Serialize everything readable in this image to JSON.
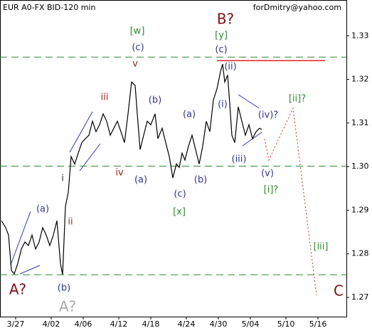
{
  "chart_data": {
    "type": "line",
    "title": "EUR A0-FX BID-120 min",
    "source": "forDmitry@yahoo.com",
    "color": "#000000",
    "x": [
      2,
      8,
      12,
      16,
      20,
      25,
      30,
      35,
      40,
      45,
      50,
      55,
      60,
      65,
      70,
      75,
      80,
      85,
      88,
      92,
      96,
      100,
      105,
      110,
      115,
      120,
      125,
      130,
      135,
      140,
      145,
      150,
      155,
      160,
      165,
      170,
      175,
      180,
      185,
      190,
      193,
      197,
      202,
      207,
      212,
      218,
      222,
      228,
      233,
      238,
      243,
      248,
      252,
      256,
      260,
      265,
      270,
      275,
      280,
      285,
      290,
      295,
      300,
      305,
      310,
      313,
      316,
      320,
      323,
      326,
      330,
      335,
      340,
      345,
      350,
      355,
      360,
      365,
      368
    ],
    "values": [
      1.2876,
      1.286,
      1.2843,
      1.2762,
      1.2754,
      1.2778,
      1.2811,
      1.2827,
      1.2819,
      1.2843,
      1.2811,
      1.2827,
      1.286,
      1.2843,
      1.2819,
      1.2843,
      1.2876,
      1.2778,
      1.2752,
      1.2909,
      1.2941,
      1.3023,
      1.3006,
      1.3031,
      1.3055,
      1.3064,
      1.3072,
      1.3104,
      1.308,
      1.3096,
      1.3121,
      1.3104,
      1.3072,
      1.3088,
      1.3104,
      1.308,
      1.3055,
      1.3121,
      1.3194,
      1.3186,
      1.3121,
      1.3039,
      1.3072,
      1.3104,
      1.3096,
      1.3121,
      1.3064,
      1.3088,
      1.3055,
      1.3023,
      1.2974,
      1.3006,
      1.2998,
      1.3031,
      1.3015,
      1.3047,
      1.3072,
      1.3039,
      1.3006,
      1.3047,
      1.3104,
      1.308,
      1.3153,
      1.3178,
      1.3218,
      1.3235,
      1.3194,
      1.321,
      1.3145,
      1.3072,
      1.3055,
      1.3137,
      1.3104,
      1.3072,
      1.3096,
      1.3064,
      1.308,
      1.3088,
      1.3085
    ],
    "xlim": [
      0,
      487
    ],
    "xticks": [
      {
        "value": 22,
        "label": "3/27"
      },
      {
        "value": 72,
        "label": "4/02"
      },
      {
        "value": 117,
        "label": "4/06"
      },
      {
        "value": 167,
        "label": "4/12"
      },
      {
        "value": 212,
        "label": "4/18"
      },
      {
        "value": 262,
        "label": "4/24"
      },
      {
        "value": 307,
        "label": "4/30"
      },
      {
        "value": 352,
        "label": "5/04"
      },
      {
        "value": 402,
        "label": "5/10"
      },
      {
        "value": 447,
        "label": "5/16"
      }
    ],
    "ylim": [
      1.2656,
      1.3382
    ],
    "yticks": [
      1.33,
      1.32,
      1.31,
      {
        "value": 1.3,
        "label": "1.30"
      },
      1.29,
      1.28,
      1.27
    ],
    "hlines": [
      {
        "value": 1.3251,
        "color": "#2e8b2e"
      },
      {
        "value": 1.3001,
        "color": "#2e8b2e"
      },
      {
        "value": 1.2752,
        "color": "#2e8b2e"
      }
    ],
    "resistance": {
      "value": 1.3243,
      "color": "#dd2222"
    },
    "annotations": [
      {
        "text": "[w]",
        "color": "#2e8b2e"
      },
      {
        "text": "(c)",
        "color": "#333399"
      },
      {
        "text": "v",
        "color": "#a0281e"
      },
      {
        "text": "iii",
        "color": "#a0281e"
      },
      {
        "text": "(b)",
        "color": "#333399"
      },
      {
        "text": "(a)",
        "color": "#333399"
      },
      {
        "text": "B?",
        "color": "#7a1010"
      },
      {
        "text": "[y]",
        "color": "#2e8b2e"
      },
      {
        "text": "(c)",
        "color": "#333399"
      },
      {
        "text": "(ii)",
        "color": "#333399"
      },
      {
        "text": "(i)",
        "color": "#333399"
      },
      {
        "text": "(iv)?",
        "color": "#333399"
      },
      {
        "text": "[ii]?",
        "color": "#2e8b2e"
      },
      {
        "text": "(iii)",
        "color": "#333399"
      },
      {
        "text": "(v)",
        "color": "#333399"
      },
      {
        "text": "[i]?",
        "color": "#2e8b2e"
      },
      {
        "text": "(a)",
        "color": "#333399"
      },
      {
        "text": "i",
        "color": "#333333"
      },
      {
        "text": "ii",
        "color": "#a0281e"
      },
      {
        "text": "iv",
        "color": "#a0281e"
      },
      {
        "text": "(a)",
        "color": "#333399"
      },
      {
        "text": "(c)",
        "color": "#333399"
      },
      {
        "text": "(b)",
        "color": "#333399"
      },
      {
        "text": "[x]",
        "color": "#2e8b2e"
      },
      {
        "text": "[iii]",
        "color": "#2e8b2e"
      },
      {
        "text": "A?",
        "color": "#7a1010"
      },
      {
        "text": "(b)",
        "color": "#333399"
      },
      {
        "text": "A?",
        "color": "#aaaaaa"
      },
      {
        "text": "C",
        "color": "#7a1010"
      }
    ]
  }
}
